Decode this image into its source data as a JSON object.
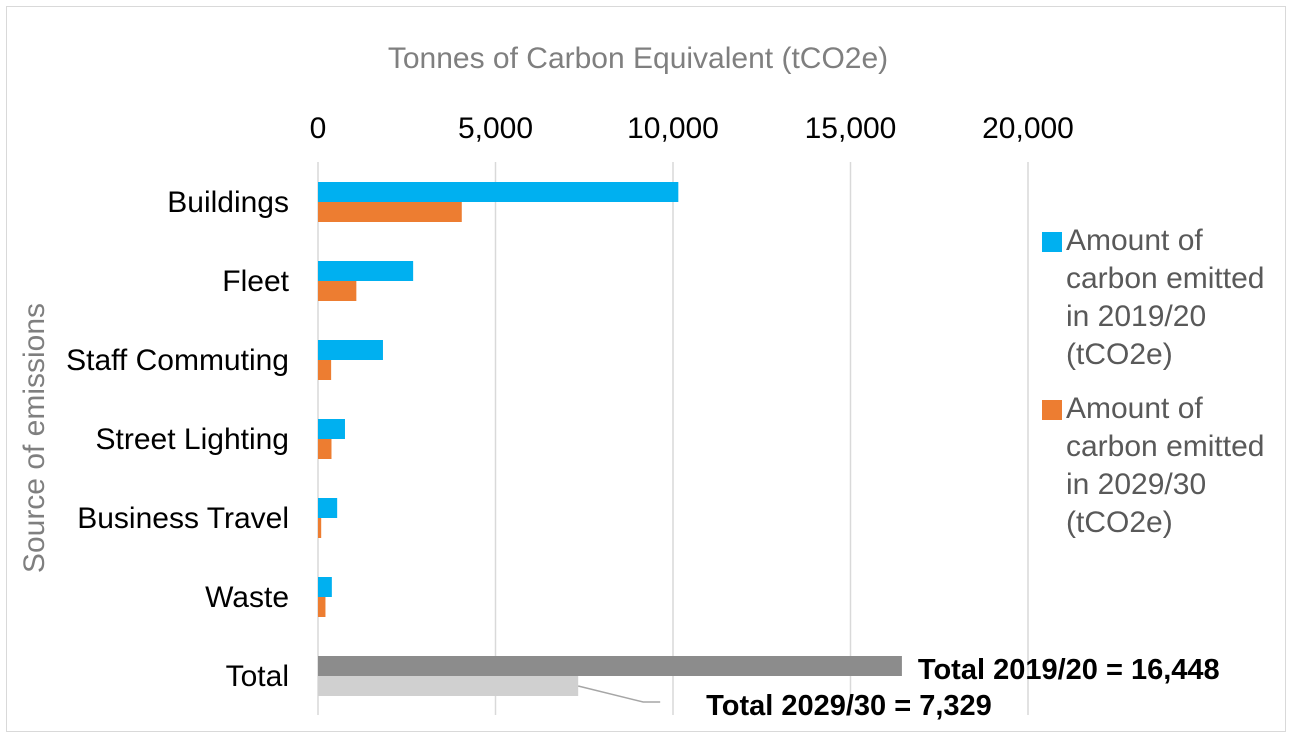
{
  "chart_data": {
    "type": "bar",
    "orientation": "horizontal",
    "xlabel": "Tonnes of Carbon Equivalent (tCO2e)",
    "ylabel": "Source of emissions",
    "xlim": [
      0,
      20000
    ],
    "x_ticks": [
      0,
      5000,
      10000,
      15000,
      20000
    ],
    "x_tick_labels": [
      "0",
      "5,000",
      "10,000",
      "15,000",
      "20,000"
    ],
    "grid": "vertical",
    "axis_position": "top",
    "categories": [
      "Buildings",
      "Fleet",
      "Staff Commuting",
      "Street Lighting",
      "Business Travel",
      "Waste",
      "Total"
    ],
    "series": [
      {
        "name": "Amount of carbon emitted in 2019/20 (tCO2e)",
        "legend_label": "Amount of carbon emitted in 2019/20 (tCO2e)",
        "legend_lines": [
          "Amount of",
          "carbon emitted",
          "in 2019/20",
          "(tCO2e)"
        ],
        "color": "#00b0f0",
        "values": [
          10150,
          2680,
          1830,
          760,
          540,
          390,
          16448
        ]
      },
      {
        "name": "Amount of carbon emitted in 2029/30 (tCO2e)",
        "legend_label": "Amount of carbon emitted in 2029/30 (tCO2e)",
        "legend_lines": [
          "Amount of",
          "carbon emitted",
          "in 2029/30",
          "(tCO2e)"
        ],
        "color": "#ed7d31",
        "values": [
          4050,
          1080,
          370,
          380,
          90,
          210,
          7329
        ]
      }
    ],
    "total_colors": [
      "#8c8c8c",
      "#d0d0d0"
    ],
    "legend_position": "right",
    "annotations": [
      {
        "text": "Total 2019/20 = 16,448",
        "series": 0,
        "category": "Total"
      },
      {
        "text": "Total 2029/30 = 7,329",
        "series": 1,
        "category": "Total"
      }
    ]
  }
}
